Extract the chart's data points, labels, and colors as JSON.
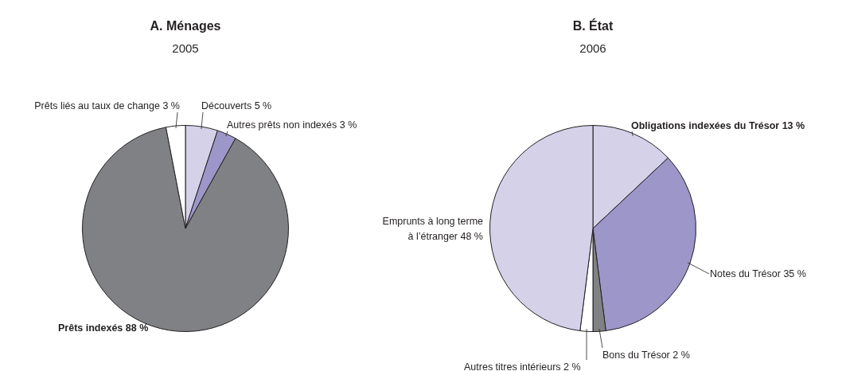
{
  "chart_data": [
    {
      "type": "pie",
      "title": "A. Ménages",
      "subtitle": "2005",
      "categories": [
        "Découverts",
        "Autres prêts non indexés",
        "Prêts indexés",
        "Prêts liés au taux de change"
      ],
      "values": [
        5,
        3,
        88,
        3
      ],
      "colors": [
        "#d5d1e9",
        "#9c96c9",
        "#808184",
        "#ffffff"
      ],
      "value_labels": [
        "5 %",
        "3 %",
        "88 %",
        "3 %"
      ]
    },
    {
      "type": "pie",
      "title": "B. État",
      "subtitle": "2006",
      "categories": [
        "Obligations indexées du Trésor",
        "Notes du Trésor",
        "Bons du Trésor",
        "Autres titres intérieurs",
        "Emprunts à long terme à l’étranger"
      ],
      "values": [
        13,
        35,
        2,
        2,
        48
      ],
      "colors": [
        "#d5d1e9",
        "#9c96c9",
        "#808184",
        "#ffffff",
        "#d5d1e9"
      ],
      "value_labels": [
        "13 %",
        "35 %",
        "2 %",
        "2 %",
        "48 %"
      ]
    }
  ]
}
